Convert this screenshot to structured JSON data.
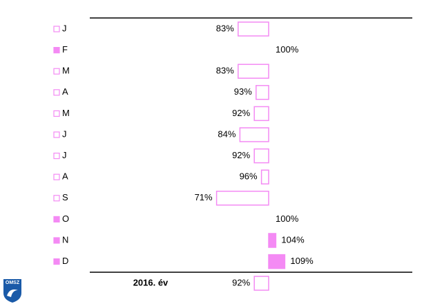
{
  "chart_data": {
    "type": "bar",
    "categories": [
      "J",
      "F",
      "M",
      "A",
      "M",
      "J",
      "J",
      "A",
      "S",
      "O",
      "N",
      "D"
    ],
    "values": [
      83,
      100,
      83,
      93,
      92,
      84,
      92,
      96,
      71,
      100,
      104,
      109
    ],
    "value_labels": [
      "83%",
      "100%",
      "83%",
      "93%",
      "92%",
      "84%",
      "92%",
      "96%",
      "71%",
      "100%",
      "104%",
      "109%"
    ],
    "total": {
      "label": "2016. év",
      "value": 92,
      "value_label": "92%"
    },
    "baseline": 100,
    "xlim": [
      50,
      130
    ],
    "color": "#f48af4"
  },
  "logo": "OMSZ"
}
